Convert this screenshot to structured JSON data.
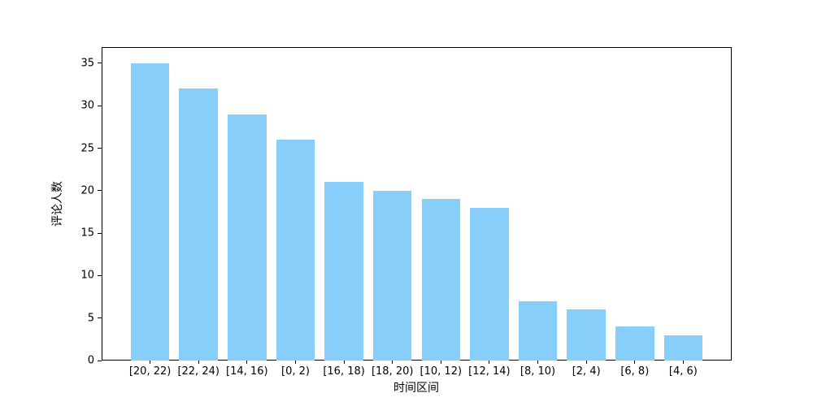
{
  "chart_data": {
    "type": "bar",
    "title": "",
    "xlabel": "时间区间",
    "ylabel": "评论人数",
    "categories": [
      "[20, 22)",
      "[22, 24)",
      "[14, 16)",
      "[0, 2)",
      "[16, 18)",
      "[18, 20)",
      "[10, 12)",
      "[12, 14)",
      "[8, 10)",
      "[2, 4)",
      "[6, 8)",
      "[4, 6)"
    ],
    "values": [
      35,
      32,
      29,
      26,
      21,
      20,
      19,
      18,
      7,
      6,
      4,
      3
    ],
    "yticks": [
      0,
      5,
      10,
      15,
      20,
      25,
      30,
      35
    ],
    "ylim": [
      0,
      36.9
    ],
    "xlim": [
      -1,
      12
    ],
    "bar_width_fraction": 0.8,
    "bar_color": "#87CEFA",
    "axis_color": "#000000",
    "background_color": "#ffffff",
    "grid": false,
    "legend": null
  }
}
